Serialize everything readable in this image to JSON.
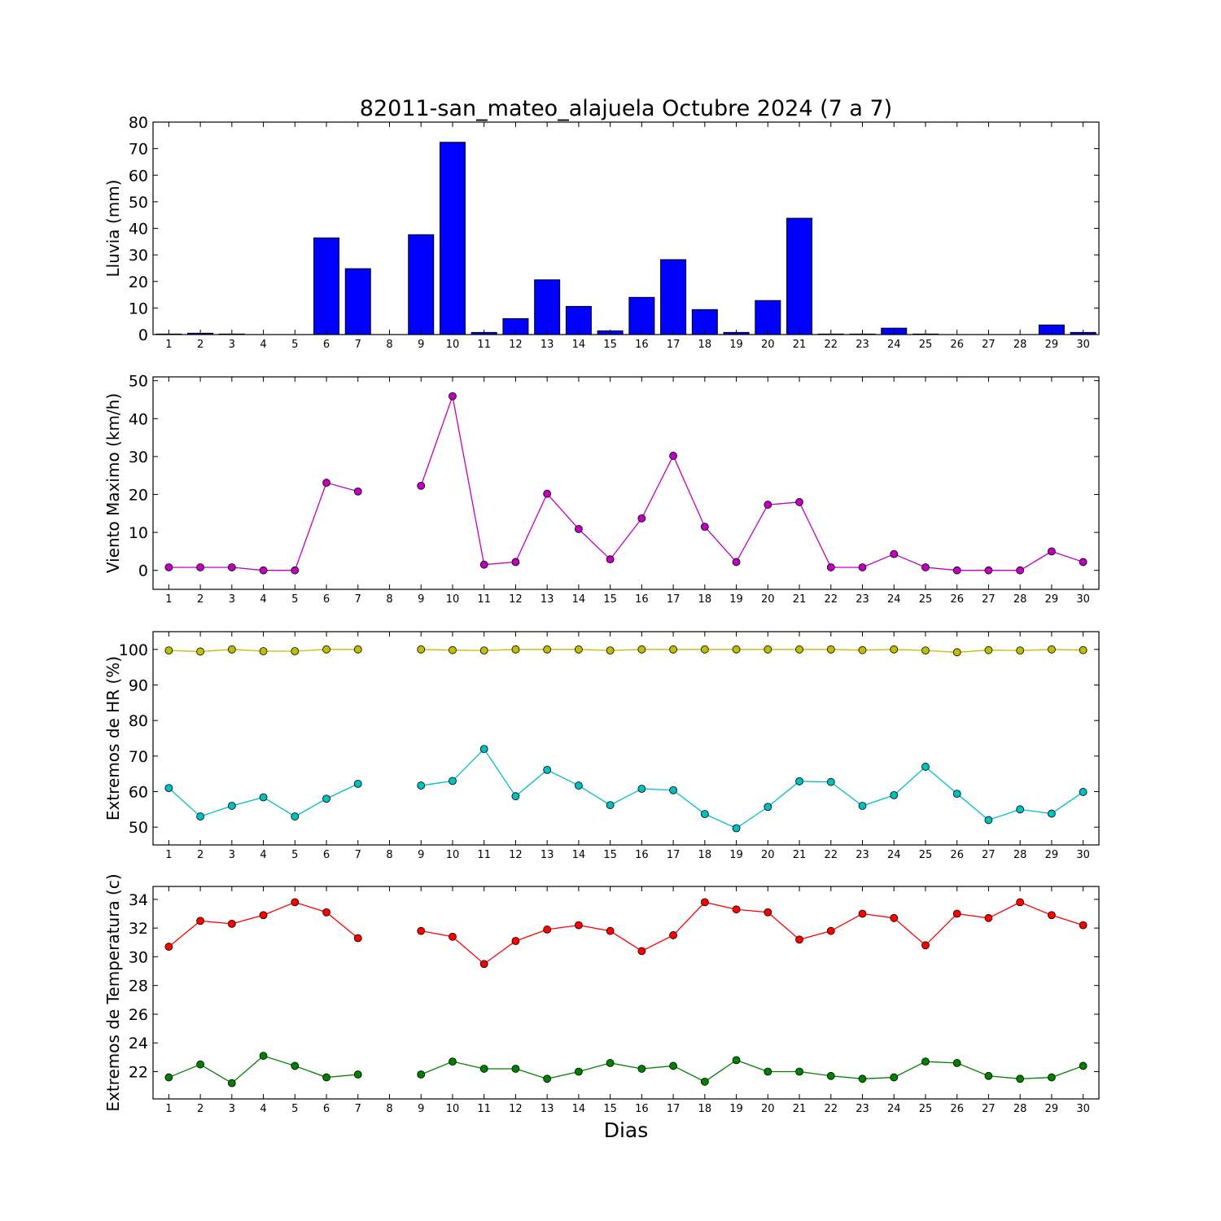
{
  "title": "82011-san_mateo_alajuela Octubre 2024  (7 a 7)",
  "xlabel": "Dias",
  "chart_data": [
    {
      "type": "bar",
      "ylabel": "Lluvia (mm)",
      "x": [
        1,
        2,
        3,
        4,
        5,
        6,
        7,
        8,
        9,
        10,
        11,
        12,
        13,
        14,
        15,
        16,
        17,
        18,
        19,
        20,
        21,
        22,
        23,
        24,
        25,
        26,
        27,
        28,
        29,
        30
      ],
      "values": [
        0.2,
        0.5,
        0.2,
        0,
        0,
        36.4,
        24.8,
        null,
        37.6,
        72.4,
        0.8,
        6.0,
        20.6,
        10.6,
        1.4,
        14.0,
        28.2,
        9.4,
        0.8,
        12.8,
        43.8,
        0.2,
        0.2,
        2.4,
        0.2,
        0,
        0,
        0,
        3.6,
        0.8
      ],
      "ylim": [
        0,
        80
      ],
      "yticks": [
        0,
        10,
        20,
        30,
        40,
        50,
        60,
        70,
        80
      ],
      "color": "#0000ff"
    },
    {
      "type": "line",
      "ylabel": "Viento Maximo (km/h)",
      "x": [
        1,
        2,
        3,
        4,
        5,
        6,
        7,
        8,
        9,
        10,
        11,
        12,
        13,
        14,
        15,
        16,
        17,
        18,
        19,
        20,
        21,
        22,
        23,
        24,
        25,
        26,
        27,
        28,
        29,
        30
      ],
      "series": [
        {
          "values": [
            0.8,
            0.8,
            0.8,
            0,
            0,
            23.1,
            20.8,
            null,
            22.3,
            45.9,
            1.5,
            2.2,
            20.2,
            10.9,
            2.9,
            13.7,
            30.2,
            11.5,
            2.2,
            17.3,
            18.0,
            0.8,
            0.8,
            4.3,
            0.8,
            0,
            0,
            0,
            5.0,
            2.2
          ],
          "color": "#bf00bf"
        }
      ],
      "ylim": [
        -5,
        51
      ],
      "yticks": [
        0,
        10,
        20,
        30,
        40,
        50
      ]
    },
    {
      "type": "line",
      "ylabel": "Extremos de HR (%)",
      "x": [
        1,
        2,
        3,
        4,
        5,
        6,
        7,
        8,
        9,
        10,
        11,
        12,
        13,
        14,
        15,
        16,
        17,
        18,
        19,
        20,
        21,
        22,
        23,
        24,
        25,
        26,
        27,
        28,
        29,
        30
      ],
      "series": [
        {
          "values": [
            99.7,
            99.4,
            100,
            99.5,
            99.5,
            100,
            100,
            null,
            100,
            99.8,
            99.7,
            100,
            100,
            100,
            99.7,
            100,
            100,
            100,
            100,
            100,
            100,
            100,
            99.8,
            100,
            99.7,
            99.2,
            99.8,
            99.7,
            100,
            99.8
          ],
          "color": "#bfbf00"
        },
        {
          "values": [
            61.0,
            53.0,
            56.0,
            58.4,
            53.0,
            58.0,
            62.2,
            null,
            61.7,
            63.0,
            72.0,
            58.7,
            66.1,
            61.7,
            56.2,
            60.8,
            60.4,
            53.7,
            49.7,
            55.7,
            62.9,
            62.7,
            56.0,
            59.0,
            67.0,
            59.4,
            52.0,
            55.0,
            53.8,
            59.9
          ],
          "color": "#00bfbf"
        }
      ],
      "ylim": [
        45,
        105
      ],
      "yticks": [
        50,
        60,
        70,
        80,
        90,
        100
      ]
    },
    {
      "type": "line",
      "ylabel": "Extremos de Temperatura (c)",
      "x": [
        1,
        2,
        3,
        4,
        5,
        6,
        7,
        8,
        9,
        10,
        11,
        12,
        13,
        14,
        15,
        16,
        17,
        18,
        19,
        20,
        21,
        22,
        23,
        24,
        25,
        26,
        27,
        28,
        29,
        30
      ],
      "series": [
        {
          "values": [
            30.7,
            32.5,
            32.3,
            32.9,
            33.8,
            33.1,
            31.3,
            null,
            31.8,
            31.4,
            29.5,
            31.1,
            31.9,
            32.2,
            31.8,
            30.4,
            31.5,
            33.8,
            33.3,
            33.1,
            31.2,
            31.8,
            33.0,
            32.7,
            30.8,
            33.0,
            32.7,
            33.8,
            32.9,
            32.2
          ],
          "color": "#ff0000"
        },
        {
          "values": [
            21.6,
            22.5,
            21.2,
            23.1,
            22.4,
            21.6,
            21.8,
            null,
            21.8,
            22.7,
            22.2,
            22.2,
            21.5,
            22.0,
            22.6,
            22.2,
            22.4,
            21.3,
            22.8,
            22.0,
            22.0,
            21.7,
            21.5,
            21.6,
            22.7,
            22.6,
            21.7,
            21.5,
            21.6,
            22.4
          ],
          "color": "#008000"
        }
      ],
      "ylim": [
        20.1,
        34.9
      ],
      "yticks": [
        22,
        24,
        26,
        28,
        30,
        32,
        34
      ]
    }
  ]
}
